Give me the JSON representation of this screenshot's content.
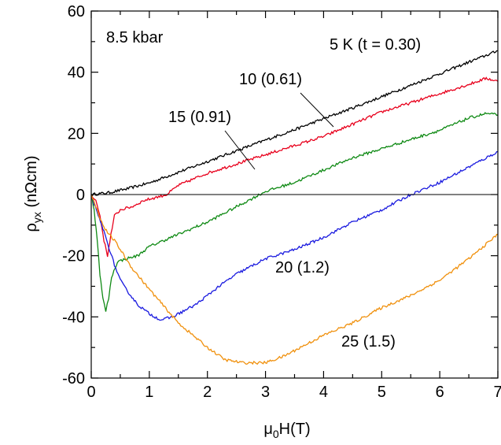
{
  "chart_data": {
    "type": "line",
    "xlim": [
      0,
      7
    ],
    "ylim": [
      -60,
      60
    ],
    "xticks": [
      0,
      1,
      2,
      3,
      4,
      5,
      6,
      7
    ],
    "yticks": [
      -60,
      -40,
      -20,
      0,
      20,
      40,
      60
    ],
    "xlabel": {
      "main": "μ",
      "sub1": "0",
      "rest": "H(T)"
    },
    "ylabel": {
      "main": "ρ",
      "sub1": "yx",
      "rest": " (nΩcm)"
    },
    "zero_line": true,
    "annotations": {
      "pressure": "8.5 kbar",
      "t5": "5 K (t = 0.30)",
      "t10": "10 (0.61)",
      "t15": "15 (0.91)",
      "t20": "20 (1.2)",
      "t25": "25 (1.5)"
    },
    "series": [
      {
        "color": "#000000",
        "points": [
          [
            0,
            0
          ],
          [
            0.3,
            0.6
          ],
          [
            0.6,
            1.8
          ],
          [
            1,
            3.8
          ],
          [
            1.5,
            7.3
          ],
          [
            2,
            10.8
          ],
          [
            2.5,
            14.3
          ],
          [
            3,
            17.8
          ],
          [
            3.5,
            21.2
          ],
          [
            4,
            24.8
          ],
          [
            4.5,
            28.3
          ],
          [
            5,
            32
          ],
          [
            5.5,
            35.7
          ],
          [
            6,
            39.5
          ],
          [
            6.5,
            43.3
          ],
          [
            7,
            47
          ]
        ]
      },
      {
        "color": "#e8001c",
        "points": [
          [
            0,
            0
          ],
          [
            0.08,
            -2
          ],
          [
            0.15,
            -7
          ],
          [
            0.22,
            -15
          ],
          [
            0.28,
            -20
          ],
          [
            0.34,
            -13
          ],
          [
            0.4,
            -7
          ],
          [
            0.5,
            -5
          ],
          [
            0.7,
            -4
          ],
          [
            0.9,
            -2
          ],
          [
            1.1,
            -1
          ],
          [
            1.3,
            0
          ],
          [
            1.5,
            3
          ],
          [
            2,
            7
          ],
          [
            2.5,
            10
          ],
          [
            3,
            13
          ],
          [
            3.5,
            16
          ],
          [
            4,
            19
          ],
          [
            4.5,
            23
          ],
          [
            5,
            27
          ],
          [
            5.5,
            30
          ],
          [
            6,
            33
          ],
          [
            6.5,
            36
          ],
          [
            6.8,
            38
          ],
          [
            7,
            37
          ]
        ]
      },
      {
        "color": "#0f8a14",
        "points": [
          [
            0,
            0
          ],
          [
            0.05,
            -5
          ],
          [
            0.1,
            -14
          ],
          [
            0.15,
            -26
          ],
          [
            0.2,
            -34
          ],
          [
            0.25,
            -38
          ],
          [
            0.3,
            -34
          ],
          [
            0.35,
            -27
          ],
          [
            0.45,
            -22
          ],
          [
            0.6,
            -21
          ],
          [
            0.8,
            -20
          ],
          [
            1,
            -17
          ],
          [
            1.5,
            -13
          ],
          [
            2,
            -9
          ],
          [
            2.5,
            -4
          ],
          [
            2.8,
            -1
          ],
          [
            3,
            1
          ],
          [
            3.5,
            4
          ],
          [
            4,
            8
          ],
          [
            4.5,
            12
          ],
          [
            5,
            15
          ],
          [
            5.5,
            18
          ],
          [
            6,
            21
          ],
          [
            6.5,
            25
          ],
          [
            6.8,
            26.5
          ],
          [
            7,
            26
          ]
        ]
      },
      {
        "color": "#1a1adf",
        "points": [
          [
            0,
            0
          ],
          [
            0.05,
            -3
          ],
          [
            0.1,
            -6
          ],
          [
            0.2,
            -11
          ],
          [
            0.3,
            -17
          ],
          [
            0.4,
            -23
          ],
          [
            0.5,
            -28
          ],
          [
            0.6,
            -31
          ],
          [
            0.8,
            -36
          ],
          [
            1,
            -39
          ],
          [
            1.2,
            -41
          ],
          [
            1.4,
            -40
          ],
          [
            1.6,
            -38
          ],
          [
            1.8,
            -36
          ],
          [
            2,
            -33
          ],
          [
            2.2,
            -30
          ],
          [
            2.5,
            -26
          ],
          [
            3,
            -21
          ],
          [
            3.5,
            -18
          ],
          [
            4,
            -14
          ],
          [
            4.5,
            -9
          ],
          [
            5,
            -5
          ],
          [
            5.5,
            0
          ],
          [
            6,
            4
          ],
          [
            6.5,
            9
          ],
          [
            7,
            14
          ]
        ]
      },
      {
        "color": "#f0900c",
        "points": [
          [
            0,
            0
          ],
          [
            0.1,
            -5
          ],
          [
            0.2,
            -10
          ],
          [
            0.3,
            -13
          ],
          [
            0.4,
            -15
          ],
          [
            0.5,
            -18
          ],
          [
            0.6,
            -21
          ],
          [
            0.7,
            -24
          ],
          [
            1,
            -31
          ],
          [
            1.5,
            -42
          ],
          [
            2,
            -50
          ],
          [
            2.3,
            -54
          ],
          [
            2.6,
            -55
          ],
          [
            3,
            -55
          ],
          [
            3.3,
            -53
          ],
          [
            3.6,
            -50
          ],
          [
            4,
            -46
          ],
          [
            4.5,
            -42
          ],
          [
            5,
            -37
          ],
          [
            5.5,
            -33
          ],
          [
            6,
            -28
          ],
          [
            6.5,
            -21
          ],
          [
            7,
            -13
          ]
        ]
      }
    ]
  }
}
